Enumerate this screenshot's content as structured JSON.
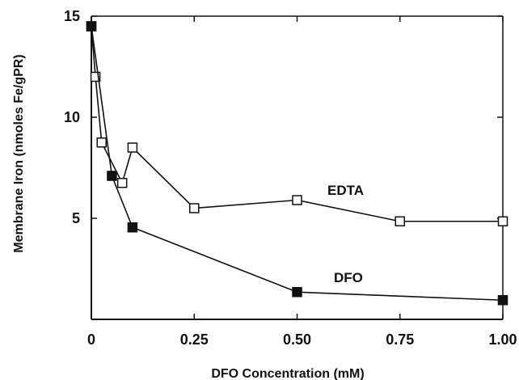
{
  "chart_data": {
    "type": "line",
    "title": "",
    "xlabel": "DFO Concentration (mM)",
    "ylabel": "Membrane Iron (nmoles Fe/gPR)",
    "xlim": [
      0,
      1.0
    ],
    "ylim": [
      0,
      15
    ],
    "x_ticks": [
      0,
      0.25,
      0.5,
      0.75,
      1.0
    ],
    "x_tick_labels": [
      "0",
      "0.25",
      "0.50",
      "0.75",
      "1.00"
    ],
    "y_ticks": [
      5,
      10,
      15
    ],
    "y_tick_labels": [
      "5",
      "10",
      "15"
    ],
    "grid": false,
    "series": [
      {
        "name": "EDTA",
        "marker": "open-square",
        "color": "#111111",
        "x": [
          0,
          0.01,
          0.025,
          0.075,
          0.1,
          0.25,
          0.5,
          0.75,
          1.0
        ],
        "y": [
          14.5,
          12.0,
          8.75,
          6.75,
          8.5,
          5.5,
          5.9,
          4.85,
          4.85
        ]
      },
      {
        "name": "DFO",
        "marker": "filled-square",
        "color": "#111111",
        "x": [
          0,
          0.05,
          0.1,
          0.5,
          1.0
        ],
        "y": [
          14.5,
          7.1,
          4.55,
          1.35,
          0.95
        ]
      }
    ]
  }
}
